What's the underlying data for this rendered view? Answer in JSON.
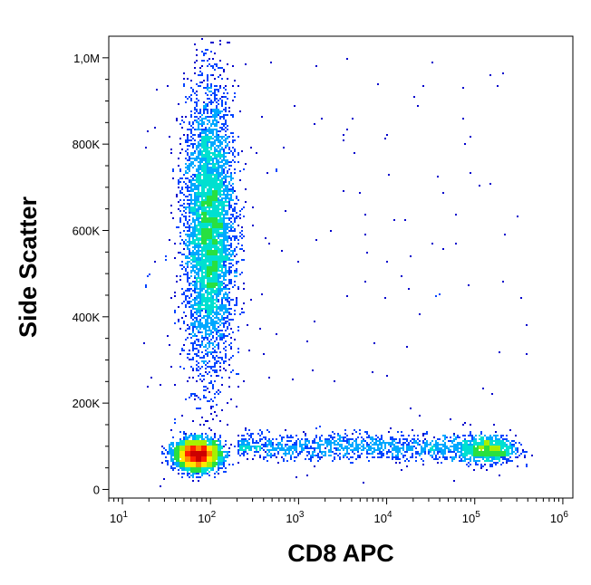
{
  "chart_data": {
    "type": "scatter",
    "title": "",
    "xlabel": "CD8 APC",
    "ylabel": "Side Scatter",
    "x_scale": "log",
    "xlim": [
      7,
      1300000
    ],
    "ylim": [
      -20000,
      1050000
    ],
    "grid": false,
    "legend": "none",
    "x_ticks": [
      {
        "value": 10,
        "base": "10",
        "exp": "1"
      },
      {
        "value": 100,
        "base": "10",
        "exp": "2"
      },
      {
        "value": 1000,
        "base": "10",
        "exp": "3"
      },
      {
        "value": 10000,
        "base": "10",
        "exp": "4"
      },
      {
        "value": 100000,
        "base": "10",
        "exp": "5"
      },
      {
        "value": 1000000,
        "base": "10",
        "exp": "6"
      }
    ],
    "y_ticks": [
      {
        "value": 0,
        "label": "0"
      },
      {
        "value": 200000,
        "label": "200K"
      },
      {
        "value": 400000,
        "label": "400K"
      },
      {
        "value": 600000,
        "label": "600K"
      },
      {
        "value": 800000,
        "label": "800K"
      },
      {
        "value": 1000000,
        "label": "1,0M"
      }
    ],
    "color_scale": [
      "#0000cc",
      "#0044ff",
      "#00a8ff",
      "#00e0d0",
      "#28e040",
      "#a8f000",
      "#ffe800",
      "#ff8800",
      "#ff2000",
      "#cc0000"
    ],
    "populations": [
      {
        "name_hidden": true,
        "x_center": 95,
        "x_spread_decades": 0.14,
        "y_center": 600000,
        "y_spread": 160000,
        "events": 5200
      },
      {
        "name_hidden": true,
        "x_center": 70,
        "x_spread_decades": 0.13,
        "y_center": 82000,
        "y_spread": 18000,
        "events": 3200
      },
      {
        "name_hidden": true,
        "x_center": 140000,
        "x_spread_decades": 0.15,
        "y_center": 95000,
        "y_spread": 16000,
        "events": 900
      },
      {
        "name_hidden": true,
        "x_range": [
          200,
          100000
        ],
        "y_center": 100000,
        "y_spread": 15000,
        "events": 1300
      },
      {
        "name_hidden": true,
        "x_range": [
          15,
          400000
        ],
        "y_range": [
          0,
          1000000
        ],
        "events": 160
      }
    ]
  }
}
